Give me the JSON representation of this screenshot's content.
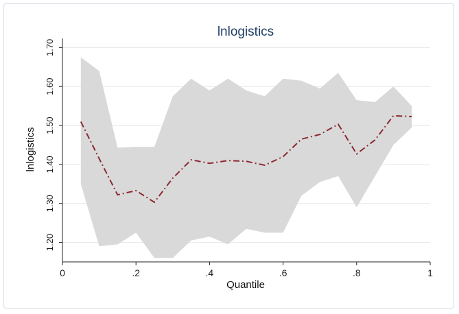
{
  "chart_data": {
    "type": "line",
    "title": "lnlogistics",
    "xlabel": "Quantile",
    "ylabel": "lnlogistics",
    "xlim": [
      0,
      1
    ],
    "ylim": [
      1.15,
      1.72
    ],
    "x_ticks": [
      0,
      0.2,
      0.4,
      0.6,
      0.8,
      1
    ],
    "x_tick_labels": [
      "0",
      ".2",
      ".4",
      ".6",
      ".8",
      "1"
    ],
    "y_ticks": [
      1.2,
      1.3,
      1.4,
      1.5,
      1.6,
      1.7
    ],
    "y_tick_labels": [
      "1.20",
      "1.30",
      "1.40",
      "1.50",
      "1.60",
      "1.70"
    ],
    "grid": true,
    "legend": "none",
    "colors": {
      "line": "#8b2a32",
      "band": "#d9d9d9",
      "title": "#1f3f66",
      "grid": "#e6e6e6"
    },
    "x": [
      0.05,
      0.1,
      0.15,
      0.2,
      0.25,
      0.3,
      0.35,
      0.4,
      0.45,
      0.5,
      0.55,
      0.6,
      0.65,
      0.7,
      0.75,
      0.8,
      0.85,
      0.9,
      0.95
    ],
    "series": [
      {
        "values": [
          1.51,
          1.415,
          1.322,
          1.333,
          1.303,
          1.365,
          1.412,
          1.403,
          1.41,
          1.408,
          1.398,
          1.42,
          1.465,
          1.477,
          1.503,
          1.427,
          1.463,
          1.525,
          1.523
        ]
      }
    ],
    "confidence_band": {
      "upper": [
        1.675,
        1.64,
        1.443,
        1.445,
        1.445,
        1.575,
        1.62,
        1.59,
        1.62,
        1.59,
        1.575,
        1.62,
        1.615,
        1.595,
        1.635,
        1.565,
        1.56,
        1.6,
        1.55
      ],
      "lower": [
        1.35,
        1.19,
        1.195,
        1.225,
        1.16,
        1.16,
        1.205,
        1.215,
        1.195,
        1.235,
        1.225,
        1.225,
        1.32,
        1.355,
        1.37,
        1.29,
        1.37,
        1.45,
        1.495
      ]
    }
  }
}
